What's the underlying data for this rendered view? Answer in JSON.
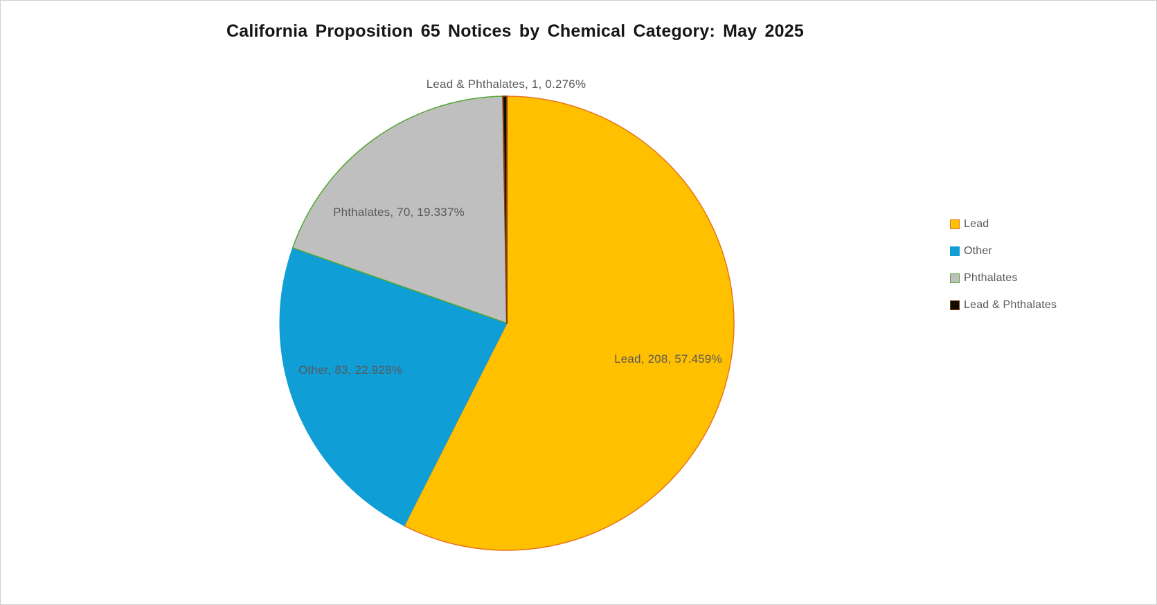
{
  "title": "California Proposition 65 Notices by Chemical Category: May 2025",
  "chart_data": {
    "type": "pie",
    "title": "California Proposition 65 Notices by Chemical Category: May 2025",
    "categories": [
      "Lead",
      "Other",
      "Phthalates",
      "Lead & Phthalates"
    ],
    "values": [
      208,
      83,
      70,
      1
    ],
    "percentages": [
      57.459,
      22.928,
      19.337,
      0.276
    ],
    "data_labels": [
      "Lead, 208, 57.459%",
      "Other, 83, 22.928%",
      "Phthalates, 70, 19.337%",
      "Lead & Phthalates, 1, 0.276%"
    ],
    "start_angle_deg": 0,
    "direction": "clockwise",
    "legend_position": "right",
    "slice_colors": [
      "#FFC000",
      "#0F9ED5",
      "#BFBFBF",
      "#0D0D01"
    ],
    "slice_border_colors": [
      "#E8731C",
      "#0F9ED5",
      "#4EA72E",
      "#843C0C"
    ],
    "label_color": "#595959",
    "title_color": "#161616"
  },
  "legend": {
    "items": [
      {
        "label": "Lead",
        "fill": "#FFC000",
        "border": "#E8731C"
      },
      {
        "label": "Other",
        "fill": "#0F9ED5",
        "border": "#0F9ED5"
      },
      {
        "label": "Phthalates",
        "fill": "#BFBFBF",
        "border": "#4EA72E"
      },
      {
        "label": "Lead & Phthalates",
        "fill": "#0D0D01",
        "border": "#843C0C"
      }
    ],
    "text_color": "#595959"
  }
}
